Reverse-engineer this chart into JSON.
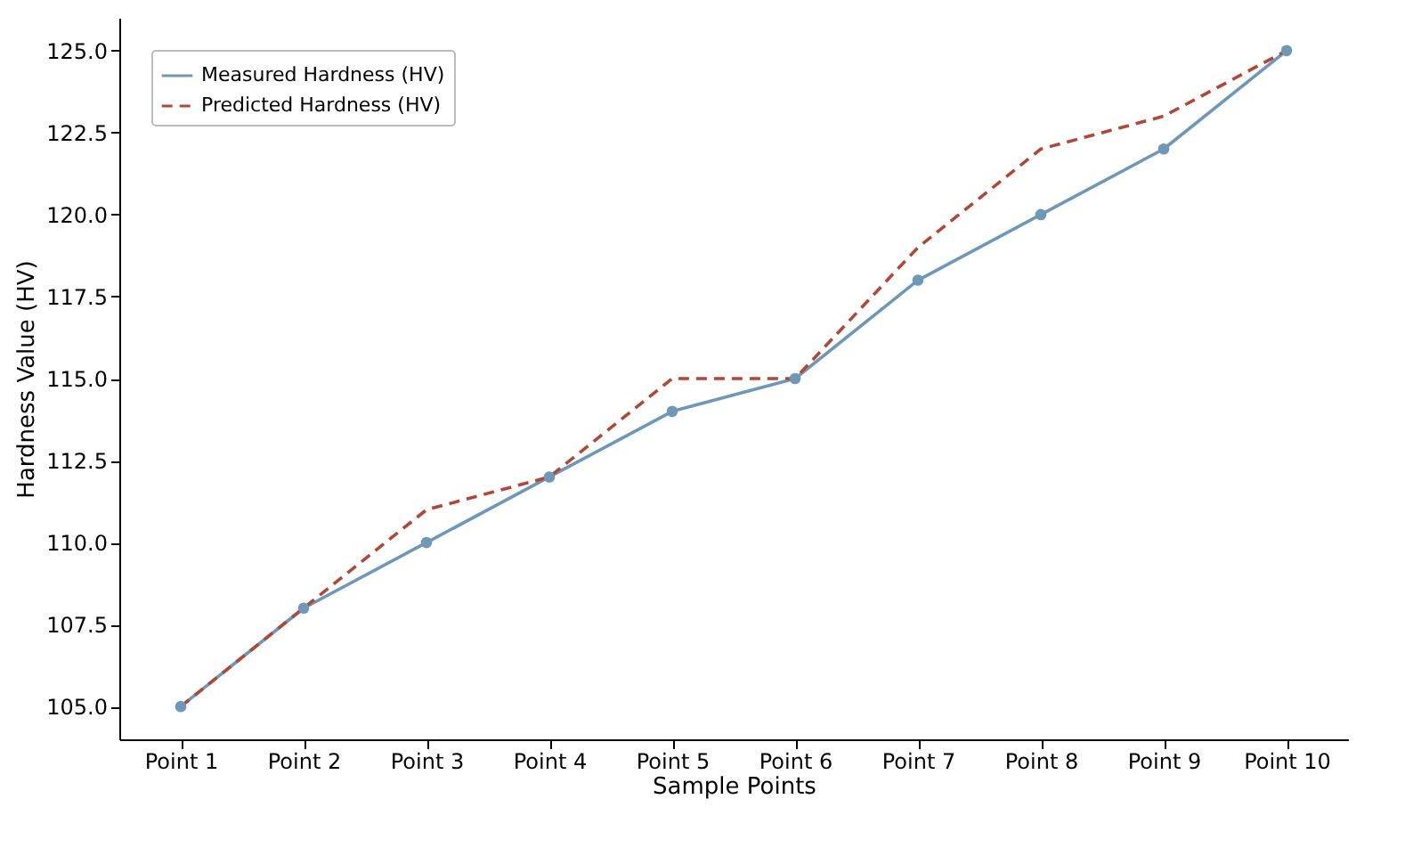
{
  "chart_data": {
    "type": "line",
    "xlabel": "Sample Points",
    "ylabel": "Hardness Value (HV)",
    "categories": [
      "Point 1",
      "Point 2",
      "Point 3",
      "Point 4",
      "Point 5",
      "Point 6",
      "Point 7",
      "Point 8",
      "Point 9",
      "Point 10"
    ],
    "series": [
      {
        "name": "Measured Hardness (HV)",
        "color": "#6e98b6",
        "marker": "circle",
        "line_style": "solid",
        "values": [
          105,
          108,
          110,
          112,
          114,
          115,
          118,
          120,
          122,
          125
        ]
      },
      {
        "name": "Predicted Hardness (HV)",
        "color": "#b0483a",
        "marker": "none",
        "line_style": "dashed",
        "values": [
          105,
          108,
          111,
          112,
          115,
          115,
          119,
          122,
          123,
          125
        ]
      }
    ],
    "ylim": [
      104,
      126
    ],
    "yticks": [
      {
        "value": 105,
        "label": "105.0"
      },
      {
        "value": 107.5,
        "label": "107.5"
      },
      {
        "value": 110,
        "label": "110.0"
      },
      {
        "value": 112.5,
        "label": "112.5"
      },
      {
        "value": 115,
        "label": "115.0"
      },
      {
        "value": 117.5,
        "label": "117.5"
      },
      {
        "value": 120,
        "label": "120.0"
      },
      {
        "value": 122.5,
        "label": "122.5"
      },
      {
        "value": 125,
        "label": "125.0"
      }
    ],
    "grid": false,
    "legend": "top left"
  }
}
